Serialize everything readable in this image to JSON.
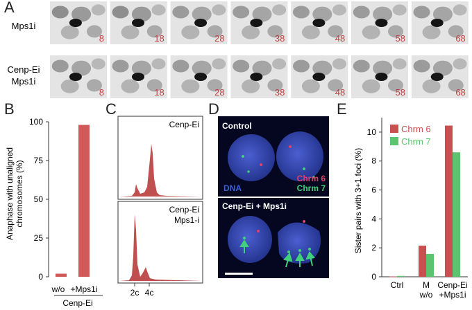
{
  "panels": {
    "a": {
      "label": "A",
      "rows": [
        {
          "label_lines": [
            "Mps1i"
          ],
          "frames": [
            "8",
            "18",
            "28",
            "38",
            "48",
            "58",
            "68"
          ]
        },
        {
          "label_lines": [
            "Cenp-Ei",
            "Mps1i"
          ],
          "frames": [
            "8",
            "18",
            "28",
            "38",
            "48",
            "58",
            "68"
          ]
        }
      ]
    },
    "b": {
      "label": "B"
    },
    "c": {
      "label": "C",
      "hist_labels": [
        [
          "Cenp-Ei"
        ],
        [
          "Cenp-Ei",
          "Mps1-i"
        ]
      ],
      "xticks": [
        "2c",
        "4c"
      ]
    },
    "d": {
      "label": "D",
      "top": {
        "title": "Control",
        "legend": [
          {
            "text": "DNA",
            "color": "#3a5fd8"
          },
          {
            "text": "Chrm 6",
            "color": "#e0406a"
          },
          {
            "text": "Chrm 7",
            "color": "#3fd27a"
          }
        ]
      },
      "bottom": {
        "title": "Cenp-Ei + Mps1i"
      }
    },
    "e": {
      "label": "E"
    }
  },
  "chart_data": [
    {
      "type": "bar",
      "panel": "B",
      "categories": [
        "w/o",
        "+Mps1i"
      ],
      "group_label": "Cenp-Ei",
      "values": [
        2,
        98
      ],
      "ylabel_lines": [
        "Anaphase with unaligned",
        "chromosomes (%)"
      ],
      "ylim": [
        0,
        100
      ],
      "yticks": [
        "0",
        "25",
        "50",
        "75",
        "100"
      ],
      "color": "#d05a5a"
    },
    {
      "type": "bar",
      "panel": "E",
      "categories": [
        [
          "Ctrl"
        ],
        [
          "M",
          "w/o"
        ],
        [
          "Cenp-Ei",
          "+Mps1i"
        ]
      ],
      "series": [
        {
          "name": "Chrm 6",
          "values": [
            0.02,
            2.15,
            10.45
          ],
          "color": "#c85050"
        },
        {
          "name": "Chrm 7",
          "values": [
            0.06,
            1.58,
            8.6
          ],
          "color": "#5cc36e"
        }
      ],
      "ylabel": "Sister pairs with 3+1 foci (%)",
      "ylim": [
        0,
        11
      ],
      "yticks": [
        "0",
        "2",
        "4",
        "6",
        "8",
        "10"
      ],
      "legend": "top-left"
    }
  ]
}
